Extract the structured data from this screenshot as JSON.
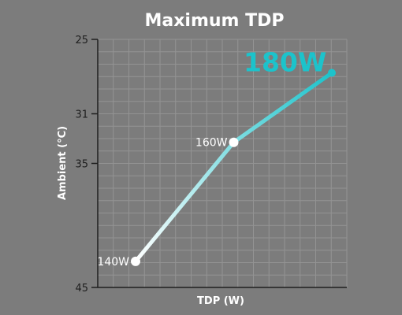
{
  "chart_data": {
    "type": "line",
    "title": "Maximum TDP",
    "xlabel": "TDP (W)",
    "ylabel": "Ambient (°C)",
    "y_reversed": true,
    "ylim": [
      25,
      45
    ],
    "yticks": [
      25,
      31,
      35,
      45
    ],
    "grid": true,
    "colors": {
      "start": "#ffffff",
      "end": "#1cc3cb",
      "background": "#7c7c7c",
      "grid": "#939393"
    },
    "points": [
      {
        "x": 140,
        "y": 42.9,
        "label": "140W"
      },
      {
        "x": 160,
        "y": 33.3,
        "label": "160W"
      },
      {
        "x": 180,
        "y": 27.7,
        "label": "180W",
        "highlight": true
      }
    ]
  }
}
